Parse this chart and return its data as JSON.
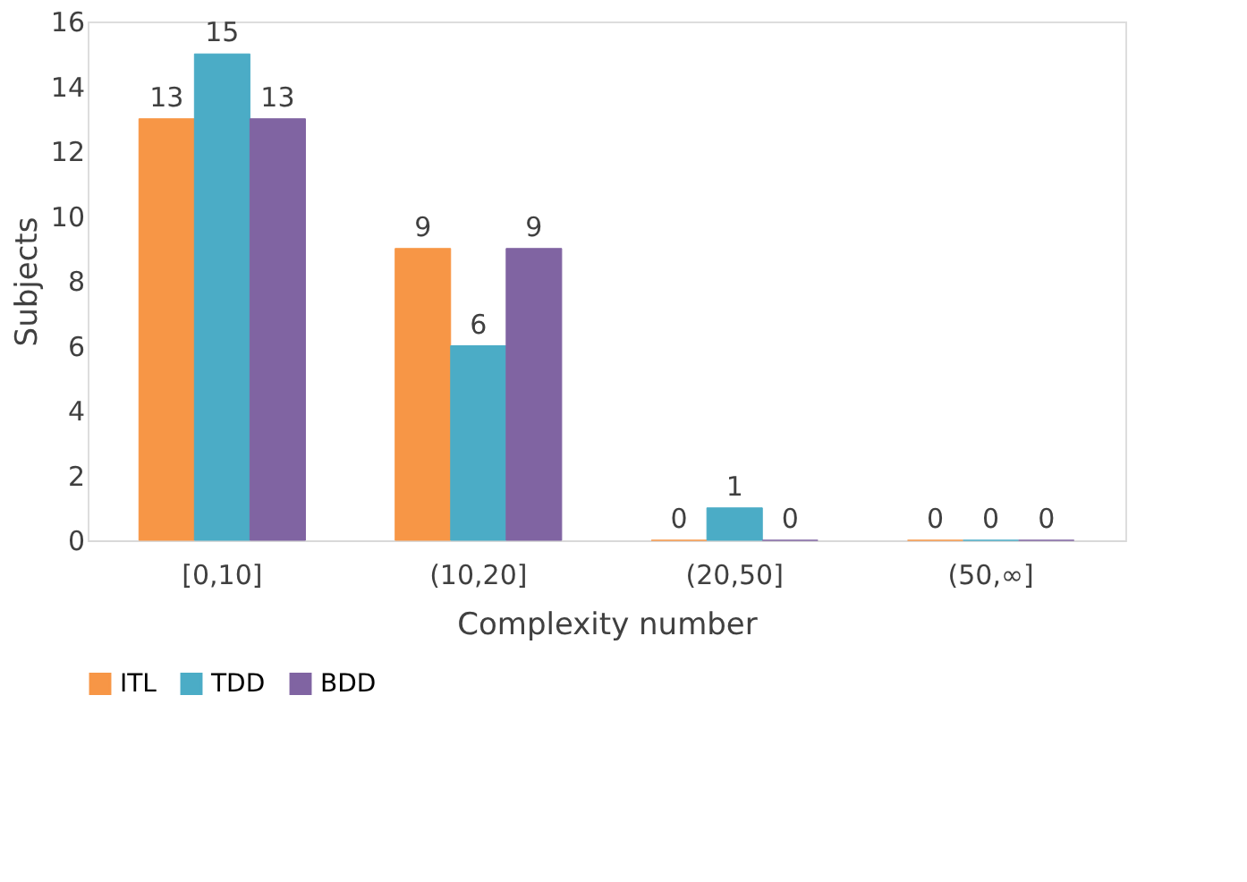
{
  "chart_data": {
    "type": "bar",
    "xlabel": "Complexity number",
    "ylabel": "Subjects",
    "categories": [
      "[0,10]",
      "(10,20]",
      "(20,50]",
      "(50,∞]"
    ],
    "series": [
      {
        "name": "ITL",
        "color": "#f79646",
        "values": [
          13,
          9,
          0,
          0
        ]
      },
      {
        "name": "TDD",
        "color": "#4bacc6",
        "values": [
          15,
          6,
          1,
          0
        ]
      },
      {
        "name": "BDD",
        "color": "#8064a2",
        "values": [
          13,
          9,
          0,
          0
        ]
      }
    ],
    "ylim": [
      0,
      16
    ],
    "yticks": [
      0,
      2,
      4,
      6,
      8,
      10,
      12,
      14,
      16
    ],
    "grid": false,
    "legend": "bottom",
    "data_labels": true
  }
}
